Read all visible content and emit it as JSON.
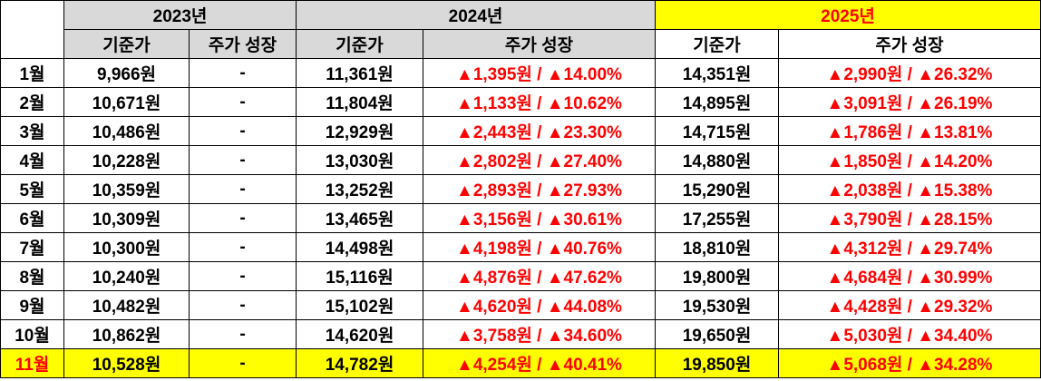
{
  "header": {
    "years": [
      "2023년",
      "2024년",
      "2025년"
    ],
    "columns": [
      "기준가",
      "주가 성장",
      "기준가",
      "주가 성장",
      "기준가",
      "주가 성장"
    ]
  },
  "table": {
    "rows": [
      [
        "1월",
        "9,966원",
        "-",
        "11,361원",
        "▲1,395원 / ▲14.00%",
        "14,351원",
        "▲2,990원 / ▲26.32%"
      ],
      [
        "2월",
        "10,671원",
        "-",
        "11,804원",
        "▲1,133원 / ▲10.62%",
        "14,895원",
        "▲3,091원 / ▲26.19%"
      ],
      [
        "3월",
        "10,486원",
        "-",
        "12,929원",
        "▲2,443원 / ▲23.30%",
        "14,715원",
        "▲1,786원 / ▲13.81%"
      ],
      [
        "4월",
        "10,228원",
        "-",
        "13,030원",
        "▲2,802원 / ▲27.40%",
        "14,880원",
        "▲1,850원 / ▲14.20%"
      ],
      [
        "5월",
        "10,359원",
        "-",
        "13,252원",
        "▲2,893원 / ▲27.93%",
        "15,290원",
        "▲2,038원 / ▲15.38%"
      ],
      [
        "6월",
        "10,309원",
        "-",
        "13,465원",
        "▲3,156원 / ▲30.61%",
        "17,255원",
        "▲3,790원 / ▲28.15%"
      ],
      [
        "7월",
        "10,300원",
        "-",
        "14,498원",
        "▲4,198원 / ▲40.76%",
        "18,810원",
        "▲4,312원 / ▲29.74%"
      ],
      [
        "8월",
        "10,240원",
        "-",
        "15,116원",
        "▲4,876원 / ▲47.62%",
        "19,800원",
        "▲4,684원 / ▲30.99%"
      ],
      [
        "9월",
        "10,482원",
        "-",
        "15,102원",
        "▲4,620원 / ▲44.08%",
        "19,530원",
        "▲4,428원 / ▲29.32%"
      ],
      [
        "10월",
        "10,862원",
        "-",
        "14,620원",
        "▲3,758원 / ▲34.60%",
        "19,650원",
        "▲5,030원 / ▲34.40%"
      ],
      [
        "11월",
        "10,528원",
        "-",
        "14,782원",
        "▲4,254원 / ▲40.41%",
        "19,850원",
        "▲5,068원 / ▲34.28%"
      ]
    ]
  }
}
